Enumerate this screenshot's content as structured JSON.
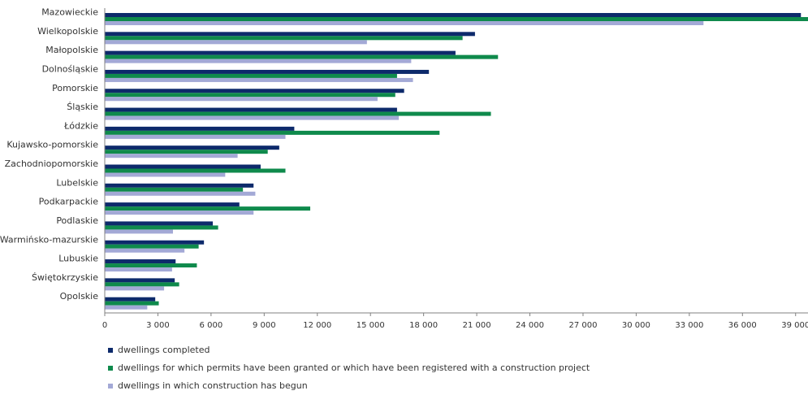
{
  "chart_data": {
    "type": "bar",
    "orientation": "horizontal",
    "categories": [
      "Mazowieckie",
      "Wielkopolskie",
      "Małopolskie",
      "Dolnośląskie",
      "Pomorskie",
      "Śląskie",
      "Łódzkie",
      "Kujawsko-pomorskie",
      "Zachodniopomorskie",
      "Lubelskie",
      "Podkarpackie",
      "Podlaskie",
      "Warmińsko-mazurskie",
      "Lubuskie",
      "Świętokrzyskie",
      "Opolskie"
    ],
    "series": [
      {
        "name": "dwellings completed",
        "color": "#0d2a6b",
        "values": [
          39300,
          20900,
          19800,
          18300,
          16900,
          16500,
          10700,
          9850,
          8800,
          8400,
          7600,
          6100,
          5600,
          4000,
          3950,
          2850
        ]
      },
      {
        "name": "dwellings for which permits have been granted or which have been registered with a construction project",
        "color": "#0f8a4c",
        "values": [
          39700,
          20200,
          22200,
          16500,
          16400,
          21800,
          18900,
          9200,
          10200,
          7800,
          11600,
          6400,
          5300,
          5200,
          4200,
          3050
        ]
      },
      {
        "name": "dwellings in which construction has begun",
        "color": "#a3a9d6",
        "values": [
          33800,
          14800,
          17300,
          17400,
          15400,
          16600,
          10200,
          7500,
          6800,
          8500,
          8400,
          3850,
          4500,
          3800,
          3350,
          2400
        ]
      }
    ],
    "xlim": [
      0,
      39700
    ],
    "xticks": [
      "0",
      "3 000",
      "6 000",
      "9 000",
      "12 000",
      "15 000",
      "18 000",
      "21 000",
      "24 000",
      "27 000",
      "30 000",
      "33 000",
      "36 000",
      "39 000"
    ],
    "xtick_values": [
      0,
      3000,
      6000,
      9000,
      12000,
      15000,
      18000,
      21000,
      24000,
      27000,
      30000,
      33000,
      36000,
      39000
    ],
    "grid": false,
    "legend_position": "bottom-left"
  }
}
